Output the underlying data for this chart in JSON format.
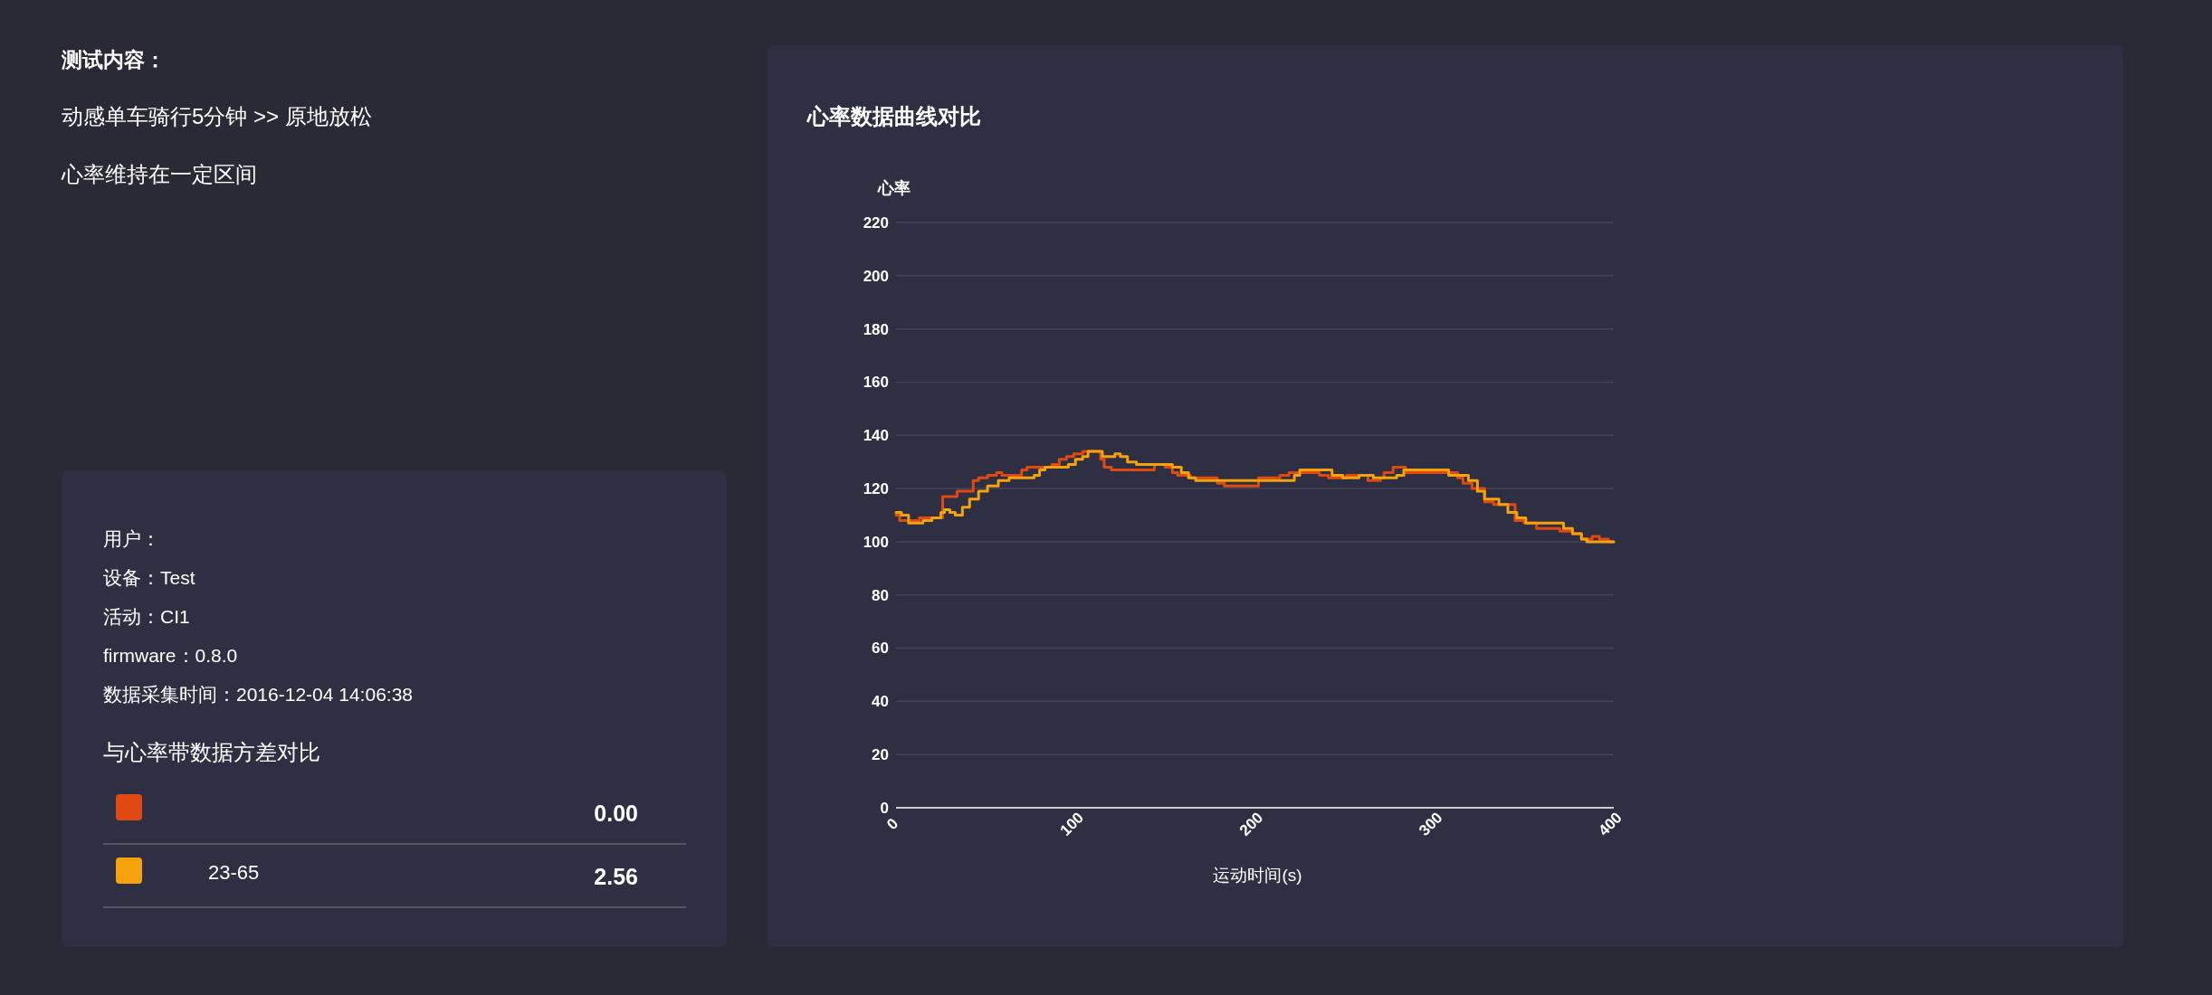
{
  "chart_data": {
    "type": "step",
    "title": "心率数据曲线对比",
    "xlabel": "运动时间(s)",
    "ylabel": "心率",
    "annotations": [
      "测试内容：",
      "动感单车骑行5分钟 >> 原地放松",
      "心率维持在一定区间",
      "用户：",
      "设备：Test",
      "活动：CI1",
      "firmware：0.8.0",
      "数据采集时间：2016-12-04 14:06:38",
      "与心率带数据方差对比",
      "0.00",
      "2.56"
    ],
    "xlim": [
      0,
      400
    ],
    "xticks": [
      0,
      100,
      200,
      300,
      400
    ],
    "ylim": [
      0,
      220
    ],
    "yticks": [
      0,
      20,
      40,
      60,
      80,
      100,
      120,
      140,
      160,
      180,
      200,
      220
    ],
    "grid": "y",
    "legend": "left",
    "line_style": "solid",
    "marker": "none",
    "series": [
      {
        "color": "#e04a10",
        "x": [
          0,
          2,
          8,
          13,
          17,
          26,
          34,
          38,
          43,
          46,
          51,
          56,
          59,
          70,
          73,
          87,
          91,
          95,
          99,
          104,
          114,
          116,
          120,
          127,
          144,
          150,
          154,
          157,
          164,
          179,
          183,
          196,
          202,
          214,
          219,
          230,
          236,
          241,
          251,
          263,
          270,
          272,
          277,
          284,
          306,
          313,
          316,
          321,
          328,
          333,
          345,
          350,
          357,
          370,
          377,
          382,
          388,
          392,
          397,
          400
        ],
        "values": [
          110,
          108,
          108,
          109,
          109,
          117,
          119,
          119,
          123,
          124,
          125,
          126,
          125,
          127,
          128,
          129,
          131,
          132,
          133,
          134,
          131,
          128,
          127,
          127,
          129,
          128,
          126,
          125,
          124,
          122,
          121,
          121,
          124,
          125,
          126,
          126,
          125,
          124,
          125,
          123,
          124,
          126,
          128,
          126,
          126,
          124,
          122,
          120,
          115,
          114,
          108,
          107,
          105,
          104,
          103,
          101,
          102,
          101,
          100,
          100
        ]
      },
      {
        "name": "23-65",
        "color": "#f5a30c",
        "x": [
          0,
          3,
          7,
          15,
          20,
          25,
          27,
          30,
          33,
          37,
          41,
          46,
          51,
          57,
          63,
          77,
          80,
          83,
          96,
          100,
          104,
          107,
          114,
          115,
          120,
          122,
          125,
          129,
          134,
          144,
          154,
          159,
          163,
          167,
          196,
          219,
          222,
          225,
          238,
          243,
          249,
          258,
          266,
          276,
          279,
          283,
          305,
          308,
          316,
          319,
          324,
          328,
          331,
          336,
          341,
          346,
          351,
          368,
          372,
          377,
          382,
          385,
          400
        ],
        "values": [
          111,
          110,
          107,
          108,
          109,
          111,
          112,
          111,
          110,
          113,
          116,
          119,
          121,
          123,
          124,
          125,
          127,
          128,
          129,
          131,
          132,
          134,
          134,
          132,
          132,
          133,
          132,
          130,
          129,
          129,
          128,
          126,
          124,
          123,
          123,
          123,
          125,
          127,
          127,
          125,
          124,
          125,
          124,
          124,
          125,
          127,
          127,
          125,
          125,
          123,
          119,
          116,
          116,
          114,
          111,
          109,
          107,
          107,
          105,
          103,
          101,
          100,
          100
        ]
      }
    ]
  }
}
